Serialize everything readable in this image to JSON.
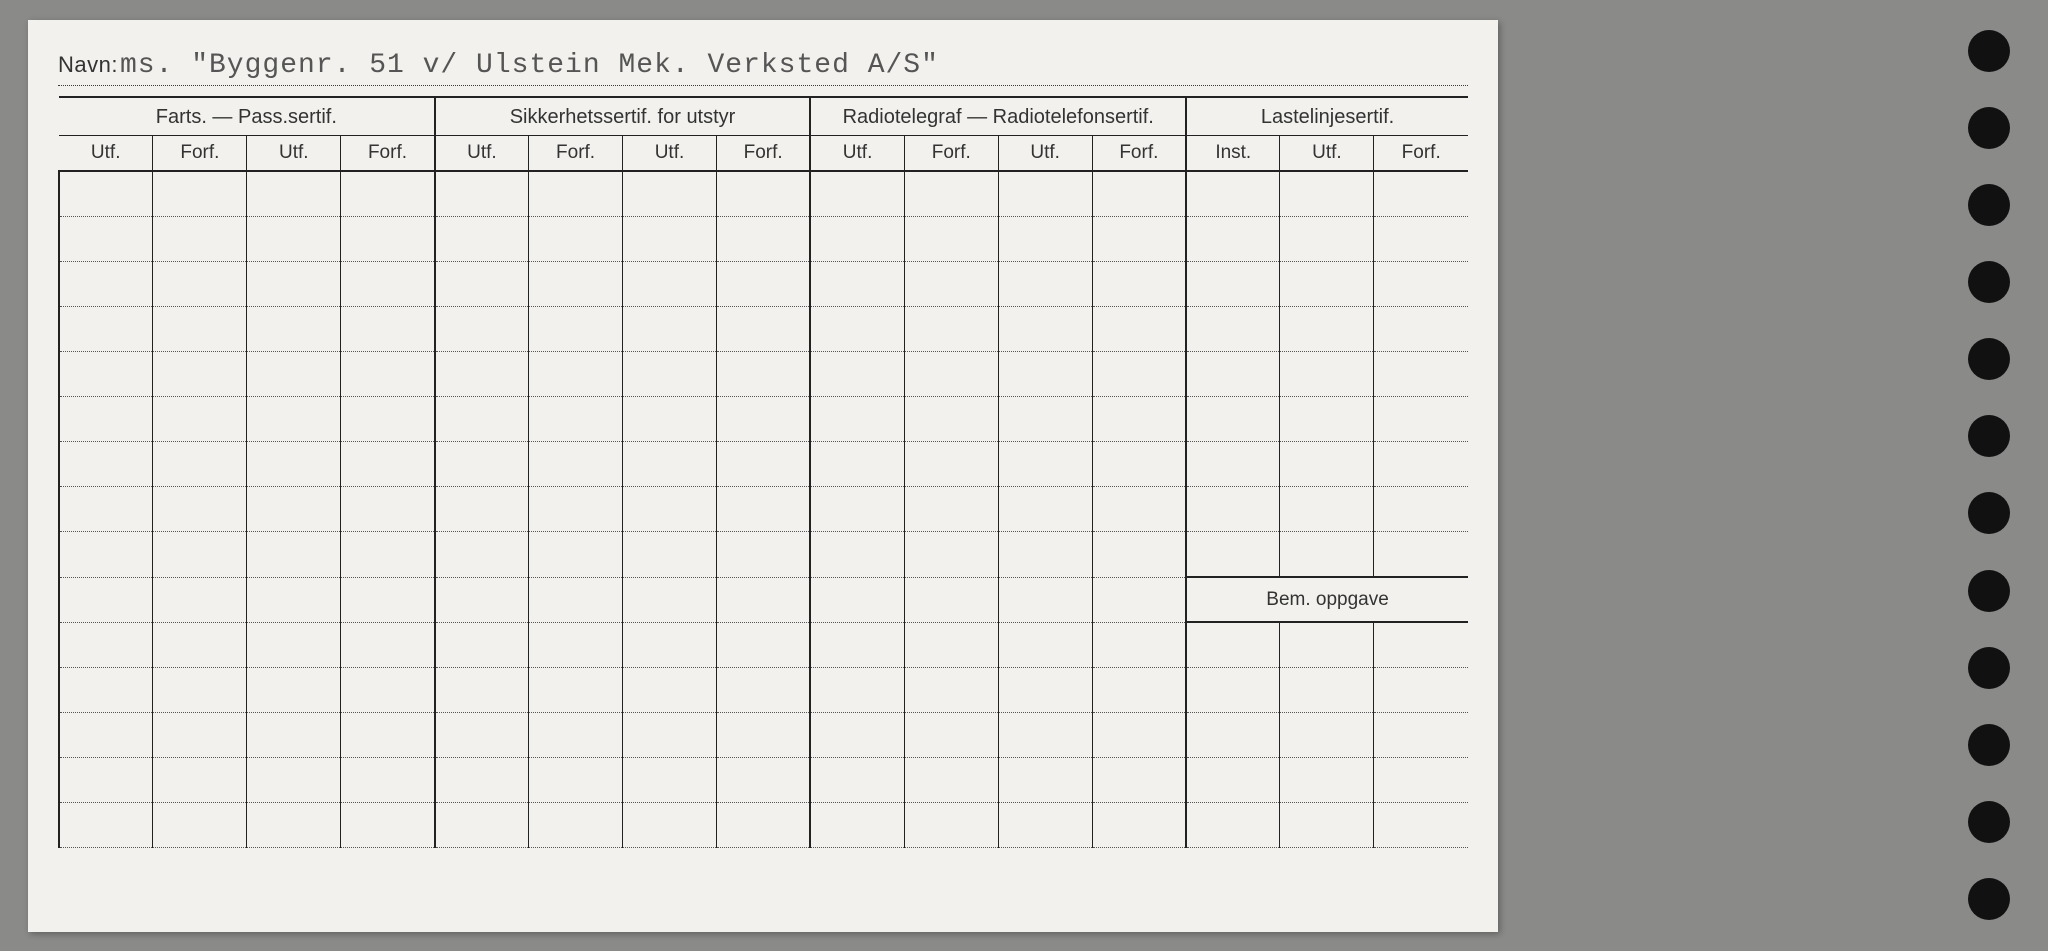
{
  "navn_label": "Navn:",
  "navn_value": "ms. \"Byggenr. 51 v/ Ulstein Mek. Verksted A/S\"",
  "groups": [
    {
      "title": "Farts. — Pass.sertif.",
      "cols": [
        "Utf.",
        "Forf.",
        "Utf.",
        "Forf."
      ]
    },
    {
      "title": "Sikkerhetssertif. for utstyr",
      "cols": [
        "Utf.",
        "Forf.",
        "Utf.",
        "Forf."
      ]
    },
    {
      "title": "Radiotelegraf — Radiotelefonsertif.",
      "cols": [
        "Utf.",
        "Forf.",
        "Utf.",
        "Forf."
      ]
    },
    {
      "title": "Lastelinjesertif.",
      "cols": [
        "Inst.",
        "Utf.",
        "Forf."
      ]
    }
  ],
  "bem_label": "Bem. oppgave",
  "rows_before_bem": 9,
  "rows_after_bem": 5,
  "hole_count": 12,
  "colors": {
    "card_bg": "#f2f1ed",
    "page_bg": "#8a8a88",
    "ink": "#222222",
    "typed": "#555555",
    "dotted": "#555555"
  }
}
